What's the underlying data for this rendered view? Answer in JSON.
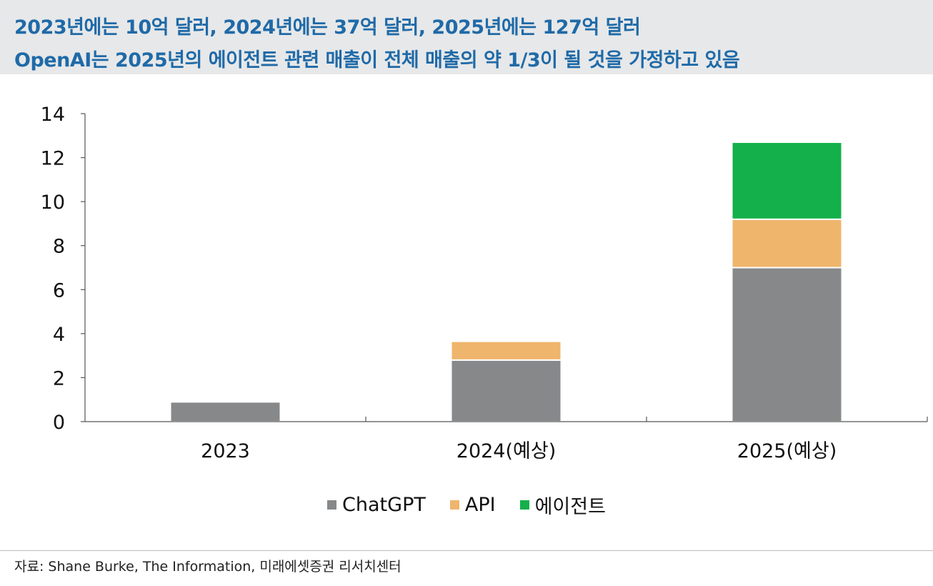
{
  "header": {
    "line1": "2023년에는 10억 달러, 2024년에는 37억 달러, 2025년에는 127억 달러",
    "line2": "OpenAI는 2025년의 에이전트 관련 매출이 전체 매출의 약 1/3이 될 것을 가정하고 있음"
  },
  "chart_data": {
    "type": "bar",
    "stacked": true,
    "categories": [
      "2023",
      "2024(예상)",
      "2025(예상)"
    ],
    "series": [
      {
        "name": "ChatGPT",
        "color": "#86888a",
        "values": [
          0.9,
          2.8,
          7.0
        ]
      },
      {
        "name": "API",
        "color": "#efb56c",
        "values": [
          0.05,
          0.85,
          2.2
        ]
      },
      {
        "name": "에이전트",
        "color": "#13b04b",
        "values": [
          0.0,
          0.0,
          3.5
        ]
      }
    ],
    "ylim": [
      0,
      14
    ],
    "yticks": [
      "0",
      "2",
      "4",
      "6",
      "8",
      "10",
      "12",
      "14"
    ],
    "legend_position": "bottom-center",
    "grid": false
  },
  "source": "자료: Shane Burke, The Information, 미래에셋증권 리서치센터"
}
